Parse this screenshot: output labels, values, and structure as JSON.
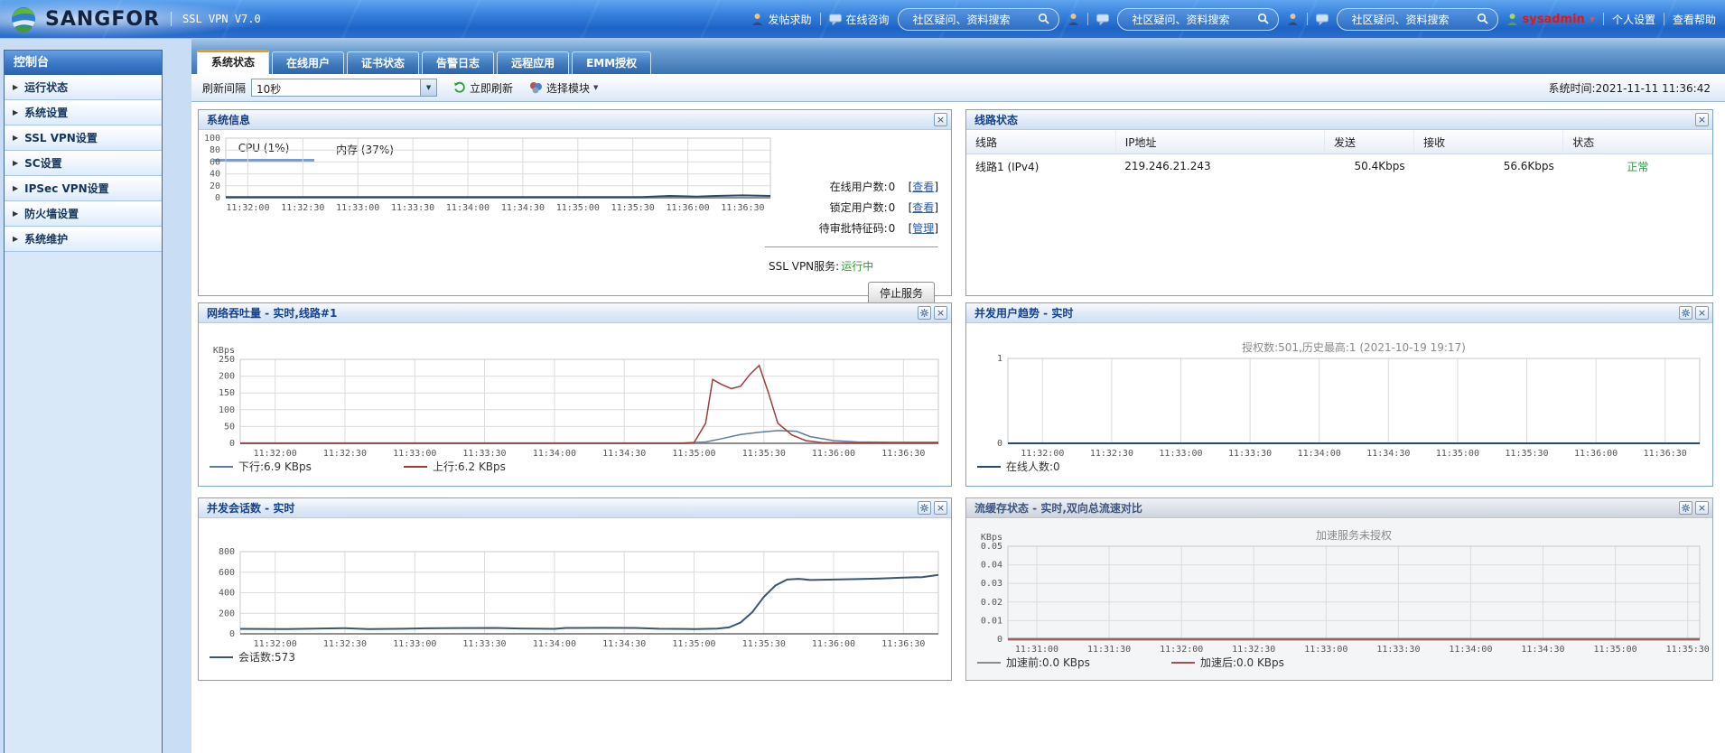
{
  "header": {
    "brand": "SANGFOR",
    "product": "SSL VPN V7.0",
    "post_help": "发帖求助",
    "online_consult": "在线咨询",
    "search_placeholder": "社区疑问、资料搜索",
    "username": "sysadmin",
    "personal_settings": "个人设置",
    "view_help": "查看帮助"
  },
  "icons": {
    "caret_down": "▼",
    "item_arrow": "▶",
    "close": "×"
  },
  "sidebar": {
    "title": "控制台",
    "items": [
      {
        "label": "运行状态"
      },
      {
        "label": "系统设置"
      },
      {
        "label": "SSL VPN设置"
      },
      {
        "label": "SC设置"
      },
      {
        "label": "IPSec VPN设置"
      },
      {
        "label": "防火墙设置"
      },
      {
        "label": "系统维护"
      }
    ]
  },
  "tabs": [
    "系统状态",
    "在线用户",
    "证书状态",
    "告警日志",
    "远程应用",
    "EMM授权"
  ],
  "toolbar": {
    "refresh_interval_label": "刷新间隔",
    "refresh_interval_value": "10秒",
    "refresh_now": "立即刷新",
    "select_module": "选择模块",
    "system_time": "系统时间:2021-11-11 11:36:42"
  },
  "panels": {
    "system_info": {
      "title": "系统信息",
      "tab_cpu": "CPU (1%)",
      "tab_mem": "内存 (37%)",
      "stats": [
        {
          "label": "在线用户数:",
          "value": "0",
          "action": "查看"
        },
        {
          "label": "锁定用户数:",
          "value": "0",
          "action": "查看"
        },
        {
          "label": "待审批特征码:",
          "value": "0",
          "action": "管理"
        }
      ],
      "service_label": "SSL VPN服务:",
      "service_status": "运行中",
      "stop_button": "停止服务"
    },
    "line_status": {
      "title": "线路状态",
      "columns": [
        "线路",
        "IP地址",
        "发送",
        "接收",
        "状态"
      ],
      "rows": [
        [
          "线路1 (IPv4)",
          "219.246.21.243",
          "50.4Kbps",
          "56.6Kbps",
          "正常"
        ]
      ]
    },
    "throughput": {
      "title": "网络吞吐量 - 实时,线路#1"
    },
    "users": {
      "title": "并发用户趋势 - 实时"
    },
    "sessions": {
      "title": "并发会话数 - 实时"
    },
    "flowcache": {
      "title": "流缓存状态 - 实时,双向总流速对比"
    }
  },
  "chart_data": [
    {
      "id": "cpu",
      "type": "line",
      "title": "CPU (1%)",
      "ylim": [
        0,
        100
      ],
      "yticks": [
        0,
        20,
        40,
        60,
        80,
        100
      ],
      "xdomain": [
        "11:31:48",
        "11:36:45"
      ],
      "x_ticks": [
        "11:32:00",
        "11:32:30",
        "11:33:00",
        "11:33:30",
        "11:34:00",
        "11:34:30",
        "11:35:00",
        "11:35:30",
        "11:36:00",
        "11:36:30"
      ],
      "series": [
        {
          "name": "CPU",
          "color": "#2a4a66",
          "width": 2,
          "values": [
            [
              "11:31:48",
              1
            ],
            [
              "11:35:35",
              1
            ],
            [
              "11:35:50",
              3
            ],
            [
              "11:36:05",
              2
            ],
            [
              "11:36:15",
              3
            ],
            [
              "11:36:30",
              4
            ],
            [
              "11:36:45",
              3
            ]
          ]
        }
      ]
    },
    {
      "id": "throughput",
      "type": "line",
      "title": "网络吞吐量 - 实时,线路#1",
      "ylabel": "KBps",
      "ylim": [
        0,
        250
      ],
      "yticks": [
        0,
        50,
        100,
        150,
        200,
        250
      ],
      "xdomain": [
        "11:31:45",
        "11:36:45"
      ],
      "x_ticks": [
        "11:32:00",
        "11:32:30",
        "11:33:00",
        "11:33:30",
        "11:34:00",
        "11:34:30",
        "11:35:00",
        "11:35:30",
        "11:36:00",
        "11:36:30"
      ],
      "series": [
        {
          "name": "下行",
          "color": "#5b7da0",
          "width": 1.5,
          "values": [
            [
              "11:31:45",
              1
            ],
            [
              "11:34:55",
              1
            ],
            [
              "11:35:05",
              4
            ],
            [
              "11:35:12",
              14
            ],
            [
              "11:35:20",
              26
            ],
            [
              "11:35:28",
              33
            ],
            [
              "11:35:36",
              38
            ],
            [
              "11:35:44",
              36
            ],
            [
              "11:35:50",
              20
            ],
            [
              "11:36:00",
              8
            ],
            [
              "11:36:10",
              4
            ],
            [
              "11:36:25",
              3
            ],
            [
              "11:36:45",
              3
            ]
          ]
        },
        {
          "name": "上行",
          "color": "#9e3c3c",
          "width": 1.5,
          "values": [
            [
              "11:31:45",
              0
            ],
            [
              "11:34:55",
              0
            ],
            [
              "11:35:00",
              2
            ],
            [
              "11:35:05",
              60
            ],
            [
              "11:35:08",
              190
            ],
            [
              "11:35:12",
              175
            ],
            [
              "11:35:16",
              163
            ],
            [
              "11:35:20",
              170
            ],
            [
              "11:35:24",
              205
            ],
            [
              "11:35:28",
              232
            ],
            [
              "11:35:32",
              150
            ],
            [
              "11:35:36",
              60
            ],
            [
              "11:35:42",
              25
            ],
            [
              "11:35:48",
              8
            ],
            [
              "11:35:55",
              2
            ],
            [
              "11:36:10",
              1
            ],
            [
              "11:36:45",
              1
            ]
          ]
        }
      ],
      "legend": [
        {
          "label": "下行:6.9 KBps",
          "color": "#5b7da0"
        },
        {
          "label": "上行:6.2 KBps",
          "color": "#9e3c3c"
        }
      ]
    },
    {
      "id": "users",
      "type": "line",
      "title": "并发用户趋势 - 实时",
      "annotation": "授权数:501,历史最高:1 (2021-10-19 19:17)",
      "ylim": [
        0,
        1
      ],
      "yticks": [
        0,
        1
      ],
      "xdomain": [
        "11:31:45",
        "11:36:45"
      ],
      "x_ticks": [
        "11:32:00",
        "11:32:30",
        "11:33:00",
        "11:33:30",
        "11:34:00",
        "11:34:30",
        "11:35:00",
        "11:35:30",
        "11:36:00",
        "11:36:30"
      ],
      "series": [
        {
          "name": "在线人数",
          "color": "#2a4a66",
          "width": 2,
          "values": [
            [
              "11:31:45",
              0
            ],
            [
              "11:36:45",
              0
            ]
          ]
        }
      ],
      "legend": [
        {
          "label": "在线人数:0",
          "color": "#2a4a66"
        }
      ]
    },
    {
      "id": "sessions",
      "type": "line",
      "title": "并发会话数 - 实时",
      "ylim": [
        0,
        800
      ],
      "yticks": [
        0,
        200,
        400,
        600,
        800
      ],
      "xdomain": [
        "11:31:45",
        "11:36:45"
      ],
      "x_ticks": [
        "11:32:00",
        "11:32:30",
        "11:33:00",
        "11:33:30",
        "11:34:00",
        "11:34:30",
        "11:35:00",
        "11:35:30",
        "11:36:00",
        "11:36:30"
      ],
      "series": [
        {
          "name": "会话数",
          "color": "#3a566f",
          "width": 2,
          "values": [
            [
              "11:31:45",
              48
            ],
            [
              "11:32:05",
              47
            ],
            [
              "11:32:20",
              52
            ],
            [
              "11:32:30",
              55
            ],
            [
              "11:32:40",
              47
            ],
            [
              "11:32:55",
              49
            ],
            [
              "11:33:05",
              54
            ],
            [
              "11:33:20",
              56
            ],
            [
              "11:33:35",
              57
            ],
            [
              "11:33:45",
              52
            ],
            [
              "11:34:00",
              48
            ],
            [
              "11:34:05",
              57
            ],
            [
              "11:34:20",
              58
            ],
            [
              "11:34:35",
              57
            ],
            [
              "11:34:45",
              49
            ],
            [
              "11:35:00",
              47
            ],
            [
              "11:35:10",
              50
            ],
            [
              "11:35:15",
              62
            ],
            [
              "11:35:20",
              110
            ],
            [
              "11:35:25",
              210
            ],
            [
              "11:35:30",
              360
            ],
            [
              "11:35:35",
              470
            ],
            [
              "11:35:40",
              528
            ],
            [
              "11:35:45",
              535
            ],
            [
              "11:35:50",
              524
            ],
            [
              "11:36:00",
              528
            ],
            [
              "11:36:10",
              533
            ],
            [
              "11:36:20",
              538
            ],
            [
              "11:36:30",
              548
            ],
            [
              "11:36:38",
              552
            ],
            [
              "11:36:45",
              573
            ]
          ]
        }
      ],
      "legend": [
        {
          "label": "会话数:573",
          "color": "#3a566f"
        }
      ]
    },
    {
      "id": "flowcache",
      "type": "line",
      "title": "流缓存状态 - 实时,双向总流速对比",
      "ylabel": "KBps",
      "annotation": "加速服务未授权",
      "ylim": [
        0,
        0.05
      ],
      "yticks": [
        0,
        0.01,
        0.02,
        0.03,
        0.04,
        0.05
      ],
      "ytick_labels": [
        "0",
        "0.01",
        "0.02",
        "0.03",
        "0.04",
        "0.05"
      ],
      "xdomain": [
        "11:30:48",
        "11:35:35"
      ],
      "x_ticks": [
        "11:31:00",
        "11:31:30",
        "11:32:00",
        "11:32:30",
        "11:33:00",
        "11:33:30",
        "11:34:00",
        "11:34:30",
        "11:35:00",
        "11:35:30"
      ],
      "series": [
        {
          "name": "加速前",
          "color": "#8c8c8c",
          "width": 3,
          "values": [
            [
              "11:30:48",
              0
            ],
            [
              "11:35:35",
              0
            ]
          ]
        },
        {
          "name": "加速后",
          "color": "#a85050",
          "width": 1.5,
          "values": [
            [
              "11:30:48",
              0
            ],
            [
              "11:35:35",
              0
            ]
          ]
        }
      ],
      "legend": [
        {
          "label": "加速前:0.0 KBps",
          "color": "#8c8c8c"
        },
        {
          "label": "加速后:0.0 KBps",
          "color": "#a85050"
        }
      ]
    }
  ]
}
